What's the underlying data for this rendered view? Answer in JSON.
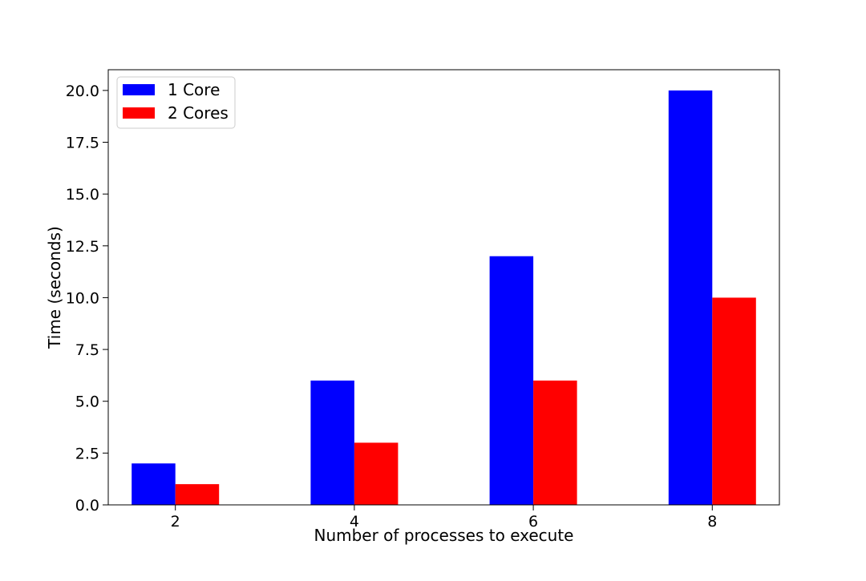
{
  "chart_data": {
    "type": "bar",
    "title": "",
    "xlabel": "Number of processes to execute",
    "ylabel": "Time (seconds)",
    "categories": [
      "2",
      "4",
      "6",
      "8"
    ],
    "series": [
      {
        "name": "1 Core",
        "color": "#0000ff",
        "values": [
          2.0,
          6.0,
          12.0,
          20.0
        ]
      },
      {
        "name": "2 Cores",
        "color": "#ff0000",
        "values": [
          1.0,
          3.0,
          6.0,
          10.0
        ]
      }
    ],
    "ylim": [
      0,
      21.0
    ],
    "yticks": [
      "0.0",
      "2.5",
      "5.0",
      "7.5",
      "10.0",
      "12.5",
      "15.0",
      "17.5",
      "20.0"
    ],
    "grid": false,
    "legend_position": "top-left"
  }
}
